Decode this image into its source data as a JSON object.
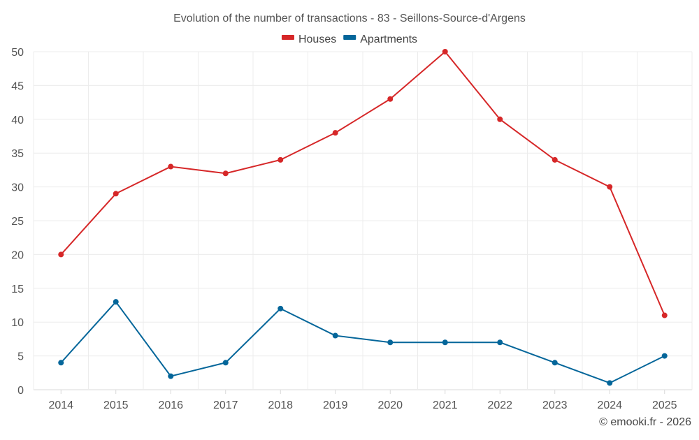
{
  "chart_data": {
    "type": "line",
    "title": "Evolution of the number of transactions - 83 - Seillons-Source-d'Argens",
    "categories": [
      "2014",
      "2015",
      "2016",
      "2017",
      "2018",
      "2019",
      "2020",
      "2021",
      "2022",
      "2023",
      "2024",
      "2025"
    ],
    "series": [
      {
        "name": "Houses",
        "color": "#d62728",
        "values": [
          20,
          29,
          33,
          32,
          34,
          38,
          43,
          50,
          40,
          34,
          30,
          11
        ]
      },
      {
        "name": "Apartments",
        "color": "#04669a",
        "values": [
          4,
          13,
          2,
          4,
          12,
          8,
          7,
          7,
          7,
          4,
          1,
          5
        ]
      }
    ],
    "ylim": [
      0,
      50
    ],
    "yticks": [
      0,
      5,
      10,
      15,
      20,
      25,
      30,
      35,
      40,
      45,
      50
    ],
    "xlabel": "",
    "ylabel": "",
    "grid": true,
    "legend_position": "top-center"
  },
  "credit": "© emooki.fr - 2026"
}
